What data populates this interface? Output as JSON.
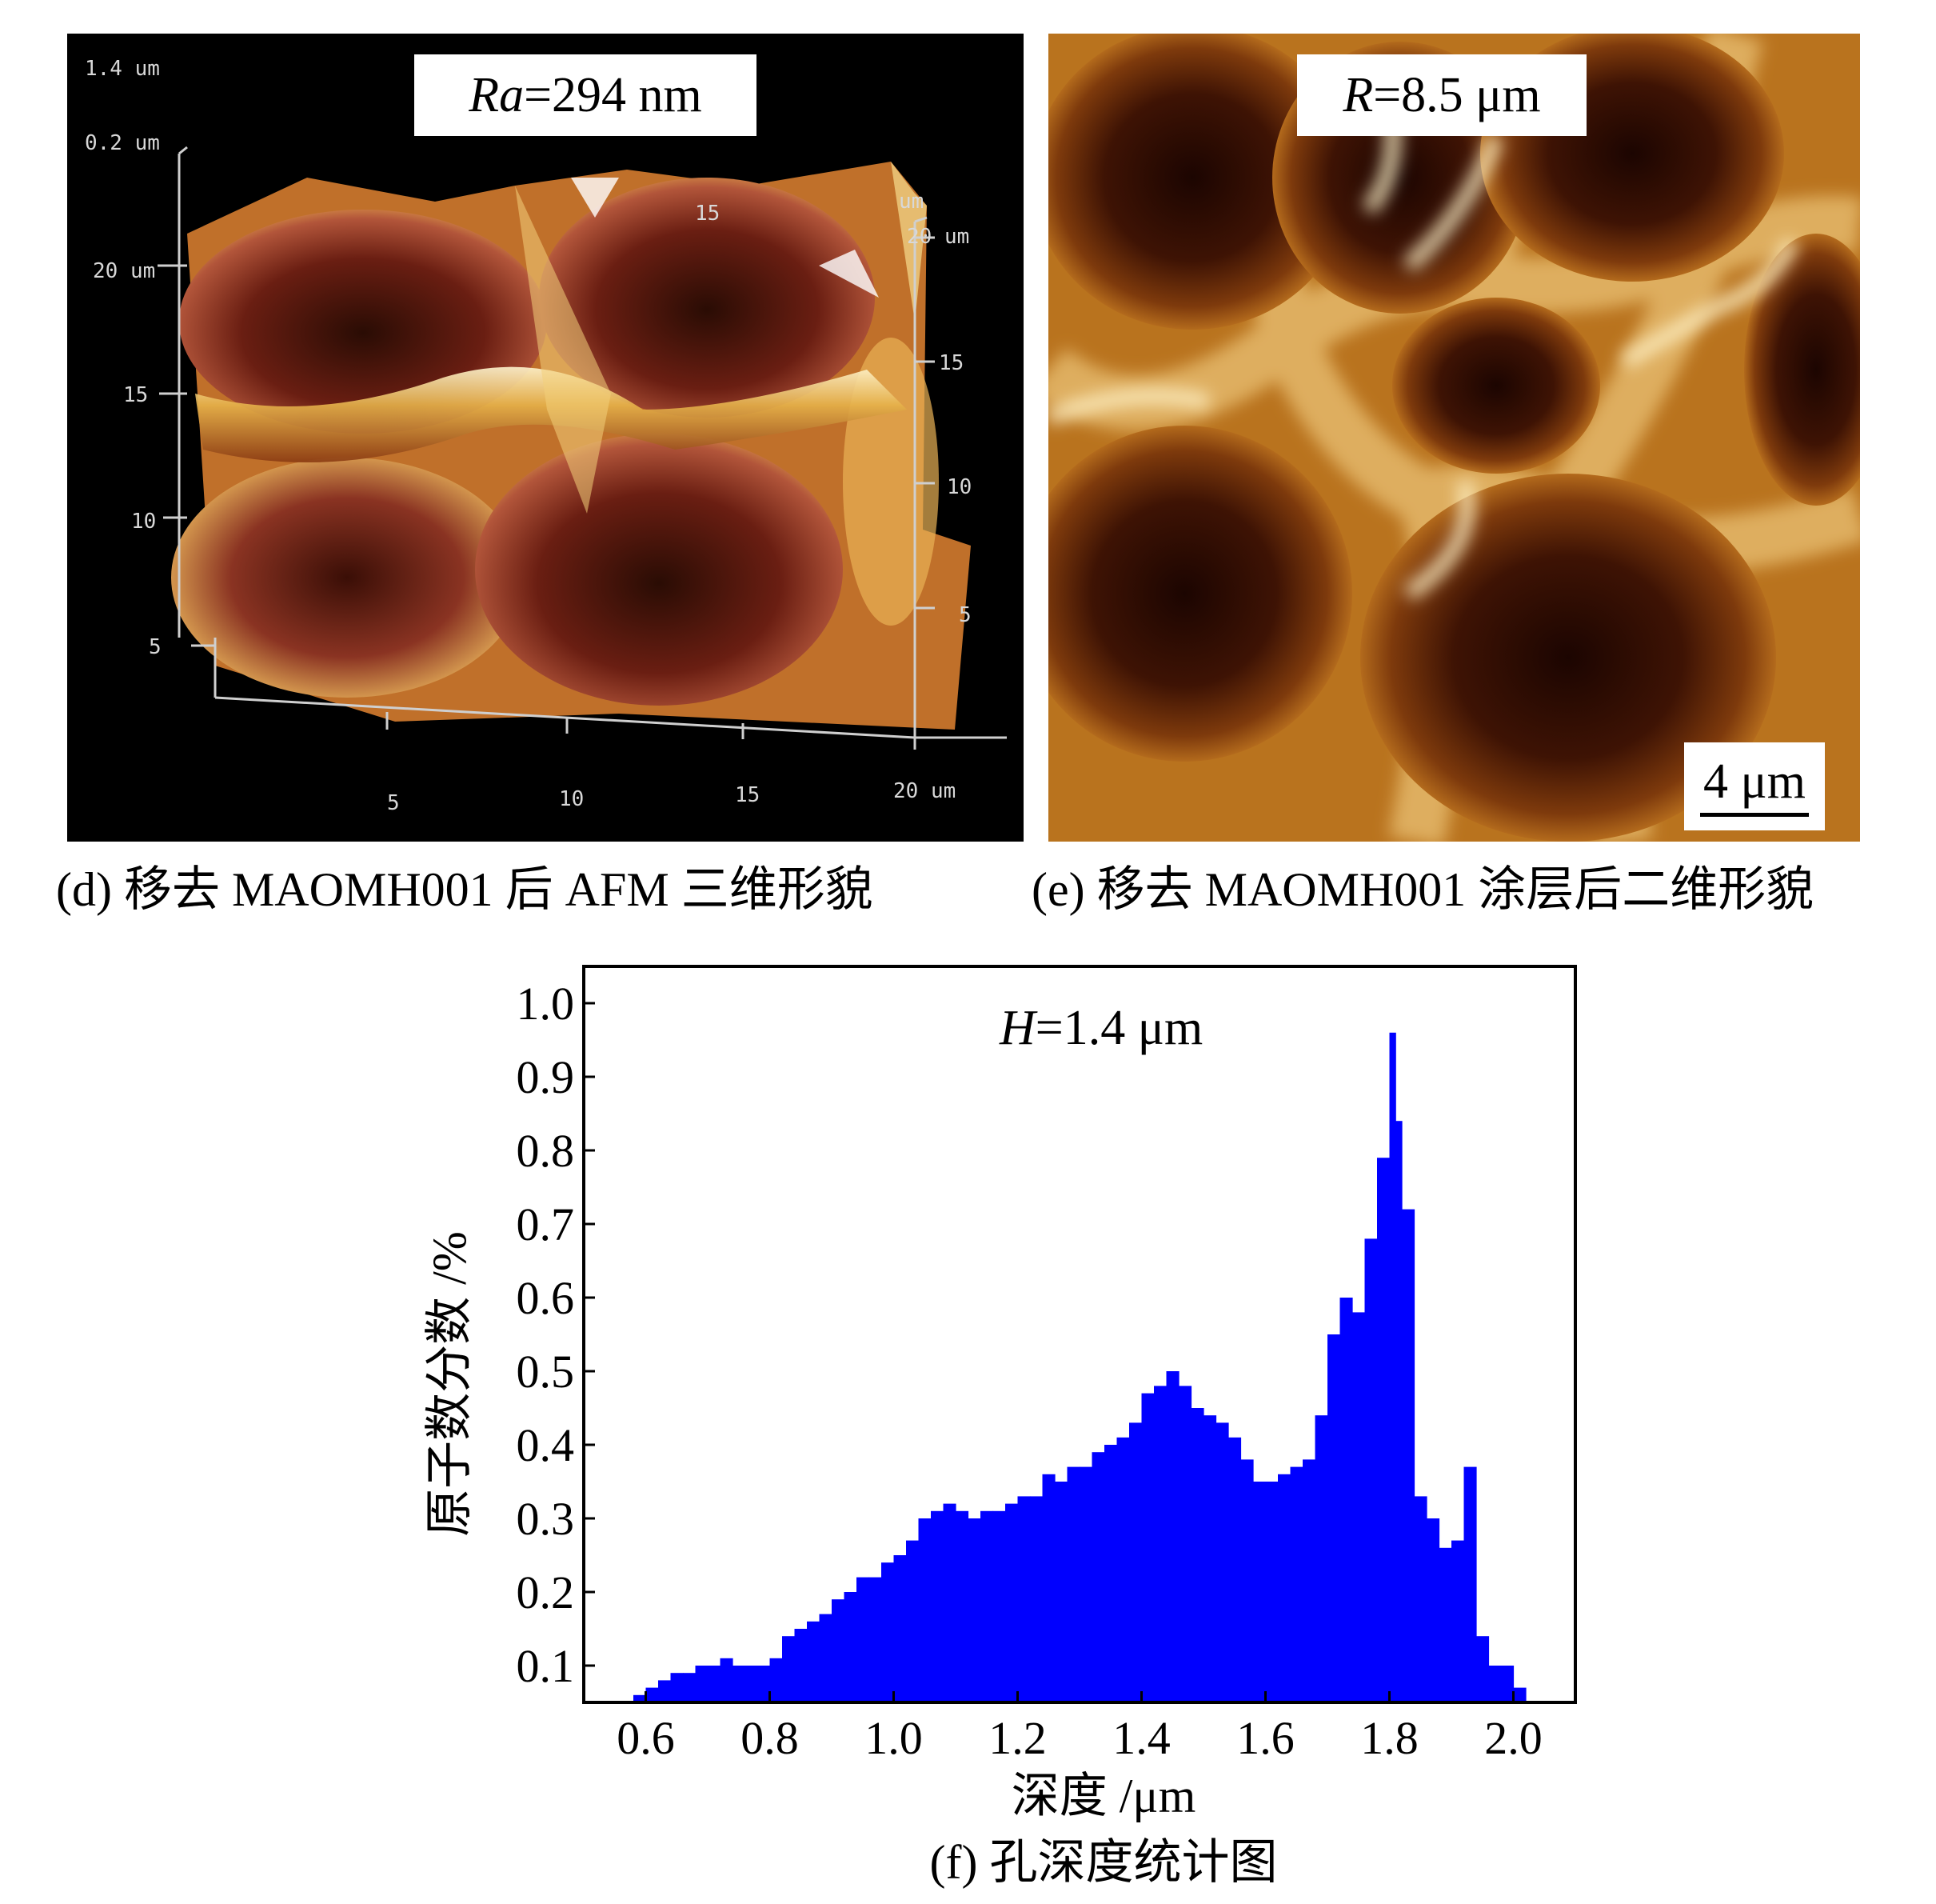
{
  "panel_d": {
    "annotation_prefix": "Ra",
    "annotation_value": "=294 nm",
    "scale_z_top": "1.4 um",
    "scale_z_low": "0.2 um",
    "left_axis_ticks": [
      "20 um",
      "15",
      "10",
      "5"
    ],
    "right_axis_top": "um",
    "right_axis_ticks": [
      "20 um",
      "15",
      "10",
      "5"
    ],
    "top_tick": "15",
    "bottom_axis_ticks": [
      "5",
      "10",
      "15",
      "20 um"
    ],
    "caption": "(d) 移去 MAOMH001 后 AFM 三维形貌"
  },
  "panel_e": {
    "annotation_prefix": "R",
    "annotation_value": "=8.5 μm",
    "scale_bar_label": "4 μm",
    "caption": "(e) 移去 MAOMH001 涂层后二维形貌"
  },
  "panel_f": {
    "annotation_prefix": "H",
    "annotation_value": "=1.4 μm",
    "caption": "(f) 孔深度统计图"
  },
  "chart_data": {
    "type": "bar",
    "title": "",
    "annotation": "H=1.4 μm",
    "xlabel": "深度 /μm",
    "ylabel": "原子数分数 /%",
    "xlim": [
      0.5,
      2.1
    ],
    "ylim": [
      0.05,
      1.05
    ],
    "xticks": [
      "0.6",
      "0.8",
      "1.0",
      "1.2",
      "1.4",
      "1.6",
      "1.8",
      "2.0"
    ],
    "yticks": [
      "0.1",
      "0.2",
      "0.3",
      "0.4",
      "0.5",
      "0.6",
      "0.7",
      "0.8",
      "0.9",
      "1.0"
    ],
    "color": "#0000ff",
    "x": [
      0.58,
      0.6,
      0.62,
      0.64,
      0.66,
      0.68,
      0.7,
      0.72,
      0.74,
      0.76,
      0.78,
      0.8,
      0.82,
      0.84,
      0.86,
      0.88,
      0.9,
      0.92,
      0.94,
      0.96,
      0.98,
      1.0,
      1.02,
      1.04,
      1.06,
      1.08,
      1.1,
      1.12,
      1.14,
      1.16,
      1.18,
      1.2,
      1.22,
      1.24,
      1.26,
      1.28,
      1.3,
      1.32,
      1.34,
      1.36,
      1.38,
      1.4,
      1.42,
      1.44,
      1.46,
      1.48,
      1.5,
      1.52,
      1.54,
      1.56,
      1.58,
      1.6,
      1.62,
      1.64,
      1.66,
      1.68,
      1.7,
      1.72,
      1.74,
      1.76,
      1.78,
      1.8,
      1.81,
      1.82,
      1.84,
      1.86,
      1.88,
      1.9,
      1.92,
      1.94,
      1.96,
      1.98,
      2.0,
      2.02
    ],
    "values": [
      0.06,
      0.07,
      0.08,
      0.09,
      0.09,
      0.1,
      0.1,
      0.11,
      0.1,
      0.1,
      0.1,
      0.11,
      0.14,
      0.15,
      0.16,
      0.17,
      0.19,
      0.2,
      0.22,
      0.22,
      0.24,
      0.25,
      0.27,
      0.3,
      0.31,
      0.32,
      0.31,
      0.3,
      0.31,
      0.31,
      0.32,
      0.33,
      0.33,
      0.36,
      0.35,
      0.37,
      0.37,
      0.39,
      0.4,
      0.41,
      0.43,
      0.47,
      0.48,
      0.5,
      0.48,
      0.45,
      0.44,
      0.43,
      0.41,
      0.38,
      0.35,
      0.35,
      0.36,
      0.37,
      0.38,
      0.44,
      0.55,
      0.6,
      0.58,
      0.68,
      0.79,
      0.96,
      0.84,
      0.72,
      0.33,
      0.3,
      0.26,
      0.27,
      0.37,
      0.14,
      0.1,
      0.1,
      0.07,
      0.05
    ]
  }
}
